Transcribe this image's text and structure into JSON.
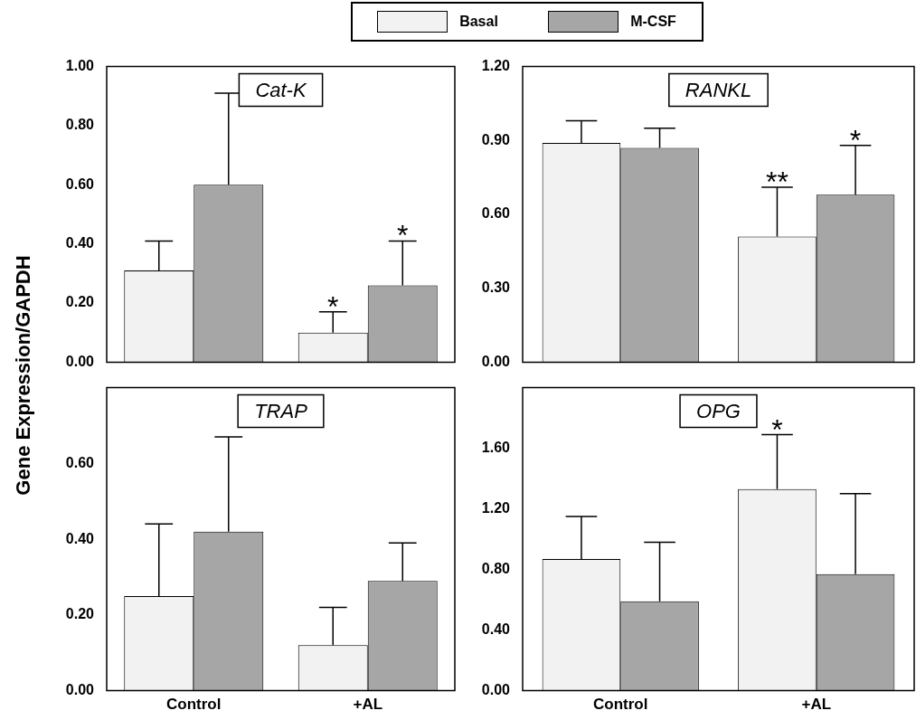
{
  "chart_data": [
    {
      "type": "bar",
      "title": "Cat-K",
      "ylabel": "Gene Expression/GAPDH",
      "legend": "top",
      "categories": [
        "Control",
        "+AL"
      ],
      "tick_labels": "y",
      "grid": false,
      "ylim": [
        0,
        1.0
      ],
      "yticks": [
        {
          "value": 0,
          "label": "0.00"
        },
        {
          "value": 0.2,
          "label": "0.20"
        },
        {
          "value": 0.4,
          "label": "0.40"
        },
        {
          "value": 0.6,
          "label": "0.60"
        },
        {
          "value": 0.8,
          "label": "0.80"
        },
        {
          "value": 1.0,
          "label": "1.00"
        }
      ],
      "series": [
        {
          "name": "Basal",
          "color": "#f2f2f2",
          "values": [
            0.31,
            0.1
          ],
          "errors": [
            [
              0.31,
              0.41
            ],
            [
              0.1,
              0.17
            ]
          ]
        },
        {
          "name": "M-CSF",
          "color": "#a6a6a6",
          "values": [
            0.6,
            0.26
          ],
          "errors": [
            [
              0.6,
              0.91
            ],
            [
              0.26,
              0.41
            ]
          ]
        }
      ],
      "annotations": [
        {
          "text": "*",
          "x": "+AL",
          "y": 0.1
        },
        {
          "text": "*",
          "x": "+AL",
          "y": 0.26
        }
      ]
    },
    {
      "type": "bar",
      "title": "RANKL",
      "categories": [
        "Control",
        "+AL"
      ],
      "tick_labels": "y",
      "grid": false,
      "ylim": [
        0,
        1.2
      ],
      "yticks": [
        {
          "value": 0,
          "label": "0.00"
        },
        {
          "value": 0.3,
          "label": "0.30"
        },
        {
          "value": 0.6,
          "label": "0.60"
        },
        {
          "value": 0.9,
          "label": "0.90"
        },
        {
          "value": 1.2,
          "label": "1.20"
        }
      ],
      "series": [
        {
          "color": "#f2f2f2",
          "values": [
            0.89,
            0.51
          ],
          "errors": [
            [
              0.89,
              0.98
            ],
            [
              0.51,
              0.71
            ]
          ]
        },
        {
          "color": "#a6a6a6",
          "values": [
            0.87,
            0.68
          ],
          "errors": [
            [
              0.87,
              0.95
            ],
            [
              0.68,
              0.88
            ]
          ]
        }
      ],
      "annotations": [
        {
          "text": "**",
          "x": "+AL",
          "y": 0.51
        },
        {
          "text": "*",
          "x": "+AL",
          "y": 0.68
        }
      ]
    },
    {
      "type": "bar",
      "title": "TRAP",
      "categories": [
        "Control",
        "+AL"
      ],
      "grid": false,
      "ylim": [
        0,
        0.8
      ],
      "yticks": [
        {
          "value": 0,
          "label": "0.00"
        },
        {
          "value": 0.2,
          "label": "0.20"
        },
        {
          "value": 0.4,
          "label": "0.40"
        },
        {
          "value": 0.6,
          "label": "0.60"
        }
      ],
      "series": [
        {
          "color": "#f2f2f2",
          "values": [
            0.25,
            0.12
          ],
          "errors": [
            [
              0.25,
              0.44
            ],
            [
              0.12,
              0.22
            ]
          ]
        },
        {
          "color": "#a6a6a6",
          "values": [
            0.42,
            0.29
          ],
          "errors": [
            [
              0.42,
              0.67
            ],
            [
              0.29,
              0.39
            ]
          ]
        }
      ]
    },
    {
      "type": "bar",
      "title": "OPG",
      "categories": [
        "Control",
        "+AL"
      ],
      "grid": false,
      "ylim": [
        0,
        2.0
      ],
      "yticks": [
        {
          "value": 0,
          "label": "0.00"
        },
        {
          "value": 0.4,
          "label": "0.40"
        },
        {
          "value": 0.8,
          "label": "0.80"
        },
        {
          "value": 1.2,
          "label": "1.20"
        },
        {
          "value": 1.6,
          "label": "1.60"
        }
      ],
      "series": [
        {
          "color": "#f2f2f2",
          "values": [
            0.87,
            1.33
          ],
          "errors": [
            [
              0.87,
              1.15
            ],
            [
              1.33,
              1.69
            ]
          ]
        },
        {
          "color": "#a6a6a6",
          "values": [
            0.59,
            0.77
          ],
          "errors": [
            [
              0.59,
              0.98
            ],
            [
              0.77,
              1.3
            ]
          ]
        }
      ],
      "annotations": [
        {
          "text": "*",
          "x": "+AL",
          "y": 1.33
        }
      ]
    }
  ]
}
